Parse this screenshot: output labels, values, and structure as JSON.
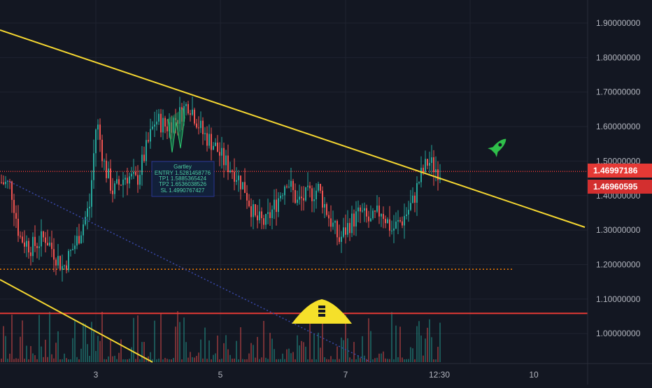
{
  "chart_data": {
    "type": "candlestick",
    "x_tick_labels": [
      "3",
      "5",
      "7",
      "12:30",
      "10"
    ],
    "y_ticks": [
      1.9,
      1.8,
      1.7,
      1.6,
      1.5,
      1.4,
      1.3,
      1.2,
      1.1,
      1.0
    ],
    "y_tick_labels": [
      "1.90000000",
      "1.80000000",
      "1.70000000",
      "1.60000000",
      "1.50000000",
      "1.40000000",
      "1.30000000",
      "1.20000000",
      "1.10000000",
      "1.00000000"
    ],
    "ylim": [
      0.91,
      1.97
    ],
    "grid": true,
    "price_badges": [
      {
        "text": "1.46997186",
        "value": 1.46997186,
        "color": "#e53935"
      },
      {
        "text": "1.46960595",
        "value": 1.46960595,
        "color": "#d32f2f"
      }
    ],
    "horizontal_levels": [
      {
        "value": 1.1865,
        "style": "dotted",
        "color": "#f57c00"
      },
      {
        "value": 1.0585,
        "style": "solid",
        "color": "#e53935"
      },
      {
        "value": 1.47,
        "style": "dotted",
        "color": "#e53935"
      }
    ],
    "pattern_label": {
      "title": "Gartley",
      "lines": [
        "ENTRY 1.5281458776",
        "TP1 1.5885365424",
        "TP2 1.6536038526",
        "SL 1.4990767427"
      ]
    },
    "colors": {
      "background": "#131722",
      "up": "#26a69a",
      "down": "#ef5350",
      "trendline": "#f5d731",
      "grid": "#1f2330",
      "axis_text": "#b2b5be"
    },
    "icons": [
      "rocket-icon",
      "warning-triangle-icon"
    ]
  }
}
